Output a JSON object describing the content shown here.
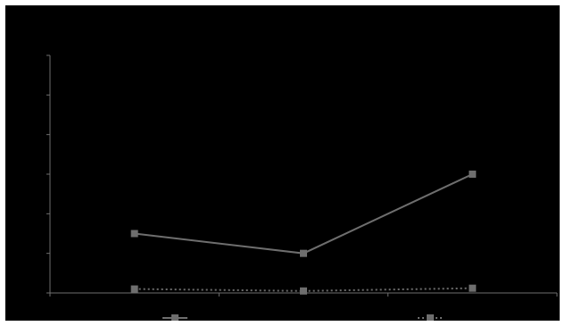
{
  "chart_data": {
    "type": "line",
    "categories": [
      "",
      "",
      ""
    ],
    "ylim": [
      0,
      6
    ],
    "grid": false,
    "legend_position": "bottom",
    "series": [
      {
        "values": [
          1.5,
          1.0,
          3.0
        ],
        "color": "#6e6e6e",
        "line_style": "solid",
        "marker": "square"
      },
      {
        "values": [
          0.1,
          0.05,
          0.12
        ],
        "color": "#6e6e6e",
        "line_style": "dotted",
        "marker": "square"
      }
    ]
  },
  "colors": {
    "background": "#000000",
    "frame": "#ffffff",
    "axis": "#6e6e6e"
  }
}
